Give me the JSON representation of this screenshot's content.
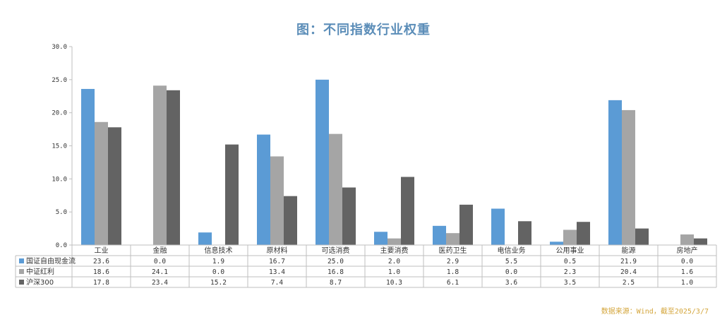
{
  "title": "图：不同指数行业权重",
  "source_note": "数据来源：Wind，截至2025/3/7",
  "chart_data": {
    "type": "bar",
    "title": "图：不同指数行业权重",
    "categories": [
      "工业",
      "金融",
      "信息技术",
      "原材料",
      "可选消费",
      "主要消费",
      "医药卫生",
      "电信业务",
      "公用事业",
      "能源",
      "房地产"
    ],
    "series": [
      {
        "name": "国证自由现金流",
        "color": "#5b9bd5",
        "values": [
          23.6,
          0.0,
          1.9,
          16.7,
          25.0,
          2.0,
          2.9,
          5.5,
          0.5,
          21.9,
          0.0
        ]
      },
      {
        "name": "中证红利",
        "color": "#a5a5a5",
        "values": [
          18.6,
          24.1,
          0.0,
          13.4,
          16.8,
          1.0,
          1.8,
          0.0,
          2.3,
          20.4,
          1.6
        ]
      },
      {
        "name": "沪深300",
        "color": "#636363",
        "values": [
          17.8,
          23.4,
          15.2,
          7.4,
          8.7,
          10.3,
          6.1,
          3.6,
          3.5,
          2.5,
          1.0
        ]
      }
    ],
    "table_values": [
      [
        "23.6",
        "0.0",
        "1.9",
        "16.7",
        "25.0",
        "2.0",
        "2.9",
        "5.5",
        "0.5",
        "21.9",
        "0.0"
      ],
      [
        "18.6",
        "24.1",
        "0.0",
        "13.4",
        "16.8",
        "1.0",
        "1.8",
        "0.0",
        "2.3",
        "20.4",
        "1.6"
      ],
      [
        "17.8",
        "23.4",
        "15.2",
        "7.4",
        "8.7",
        "10.3",
        "6.1",
        "3.6",
        "3.5",
        "2.5",
        "1.0"
      ]
    ],
    "yticks": [
      "0.0",
      "5.0",
      "10.0",
      "15.0",
      "20.0",
      "25.0",
      "30.0"
    ],
    "ylim": [
      0,
      30
    ],
    "grid": false,
    "legend": "data-table"
  }
}
